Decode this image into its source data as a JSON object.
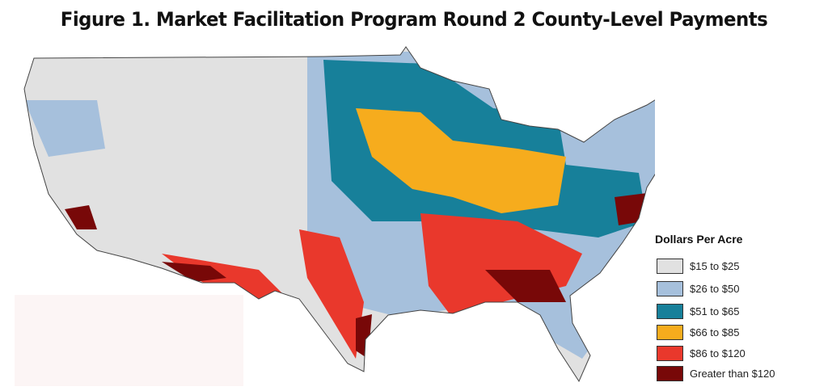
{
  "header": {
    "title": "Figure 1. Market Facilitation Program Round 2 County-Level Payments"
  },
  "legend": {
    "title": "Dollars Per Acre",
    "items": [
      {
        "label": "$15 to $25",
        "color": "#e1e1e1"
      },
      {
        "label": "$26 to $50",
        "color": "#a6c0dc"
      },
      {
        "label": "$51 to $65",
        "color": "#17809a"
      },
      {
        "label": "$66 to $85",
        "color": "#f6ac1d"
      },
      {
        "label": "$86 to $120",
        "color": "#e9382c"
      },
      {
        "label": "Greater than $120",
        "color": "#780808"
      }
    ]
  }
}
